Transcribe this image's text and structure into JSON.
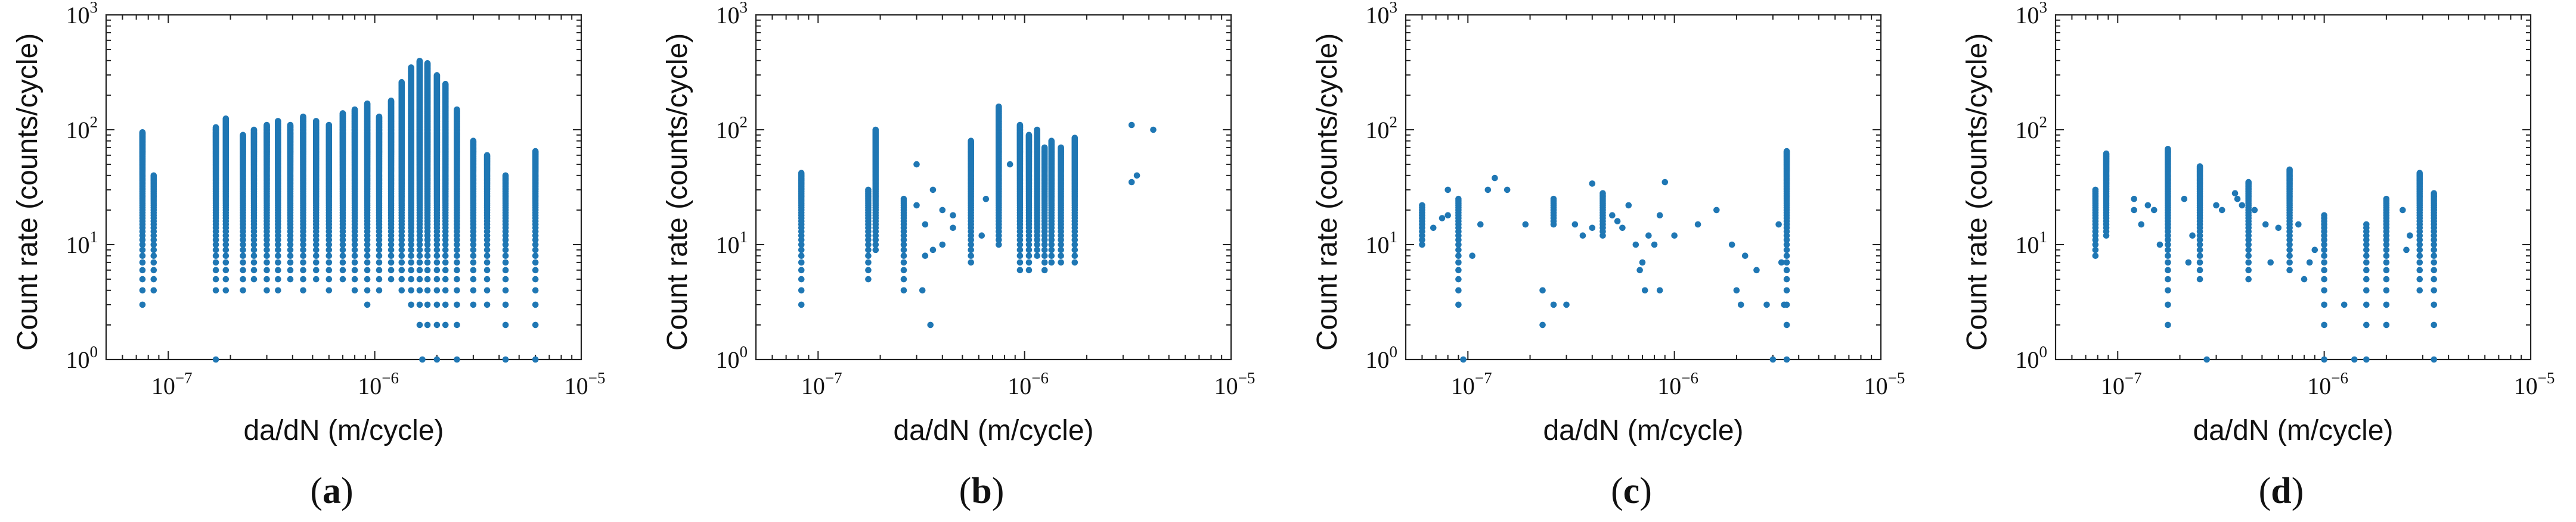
{
  "chart_data": [
    {
      "panel": "a",
      "type": "scatter",
      "xlabel": "da/dN (m/cycle)",
      "ylabel": "Count rate (counts/cycle)",
      "xscale": "log",
      "yscale": "log",
      "xlim": [
        5e-08,
        1e-05
      ],
      "ylim": [
        1,
        1000
      ],
      "xticks": [
        1e-07,
        1e-06,
        1e-05
      ],
      "yticks": [
        1,
        10,
        100,
        1000
      ],
      "color": "#1f77b4",
      "columns": [
        {
          "x": 7.5e-08,
          "ymin": 3,
          "ymax": 95
        },
        {
          "x": 8.5e-08,
          "ymin": 4,
          "ymax": 40
        },
        {
          "x": 1.7e-07,
          "ymin": 4,
          "ymax": 105
        },
        {
          "x": 1.9e-07,
          "ymin": 4,
          "ymax": 125
        },
        {
          "x": 2.3e-07,
          "ymin": 4,
          "ymax": 90
        },
        {
          "x": 2.6e-07,
          "ymin": 5,
          "ymax": 100
        },
        {
          "x": 3e-07,
          "ymin": 4,
          "ymax": 110
        },
        {
          "x": 3.4e-07,
          "ymin": 4,
          "ymax": 120
        },
        {
          "x": 3.9e-07,
          "ymin": 5,
          "ymax": 110
        },
        {
          "x": 4.5e-07,
          "ymin": 4,
          "ymax": 130
        },
        {
          "x": 5.2e-07,
          "ymin": 5,
          "ymax": 120
        },
        {
          "x": 6e-07,
          "ymin": 4,
          "ymax": 110
        },
        {
          "x": 7e-07,
          "ymin": 5,
          "ymax": 140
        },
        {
          "x": 8e-07,
          "ymin": 4,
          "ymax": 150
        },
        {
          "x": 9.2e-07,
          "ymin": 3,
          "ymax": 170
        },
        {
          "x": 1.05e-06,
          "ymin": 4,
          "ymax": 130
        },
        {
          "x": 1.2e-06,
          "ymin": 5,
          "ymax": 180
        },
        {
          "x": 1.35e-06,
          "ymin": 4,
          "ymax": 260
        },
        {
          "x": 1.5e-06,
          "ymin": 3,
          "ymax": 350
        },
        {
          "x": 1.65e-06,
          "ymin": 2,
          "ymax": 400
        },
        {
          "x": 1.8e-06,
          "ymin": 2,
          "ymax": 380
        },
        {
          "x": 2e-06,
          "ymin": 1,
          "ymax": 300
        },
        {
          "x": 2.2e-06,
          "ymin": 2,
          "ymax": 250
        },
        {
          "x": 2.5e-06,
          "ymin": 2,
          "ymax": 150
        },
        {
          "x": 3e-06,
          "ymin": 3,
          "ymax": 80
        },
        {
          "x": 3.5e-06,
          "ymin": 3,
          "ymax": 60
        },
        {
          "x": 4.3e-06,
          "ymin": 2,
          "ymax": 40
        },
        {
          "x": 6e-06,
          "ymin": 2,
          "ymax": 65
        }
      ],
      "points": [
        [
          1.7e-06,
          1
        ],
        [
          2.5e-06,
          1
        ],
        [
          4.3e-06,
          1
        ],
        [
          6e-06,
          1
        ],
        [
          1.7e-07,
          1
        ]
      ]
    },
    {
      "panel": "b",
      "type": "scatter",
      "xlabel": "da/dN (m/cycle)",
      "ylabel": "Count rate (counts/cycle)",
      "xscale": "log",
      "yscale": "log",
      "xlim": [
        5e-08,
        1e-05
      ],
      "ylim": [
        1,
        1000
      ],
      "xticks": [
        1e-07,
        1e-06,
        1e-05
      ],
      "yticks": [
        1,
        10,
        100,
        1000
      ],
      "color": "#1f77b4",
      "columns": [
        {
          "x": 8.3e-08,
          "ymin": 3,
          "ymax": 42
        },
        {
          "x": 1.75e-07,
          "ymin": 5,
          "ymax": 30
        },
        {
          "x": 1.9e-07,
          "ymin": 9,
          "ymax": 100
        },
        {
          "x": 2.6e-07,
          "ymin": 4,
          "ymax": 25
        },
        {
          "x": 5.5e-07,
          "ymin": 7,
          "ymax": 80
        },
        {
          "x": 7.5e-07,
          "ymin": 10,
          "ymax": 160
        },
        {
          "x": 9.5e-07,
          "ymin": 6,
          "ymax": 110
        },
        {
          "x": 1.05e-06,
          "ymin": 6,
          "ymax": 90
        },
        {
          "x": 1.15e-06,
          "ymin": 8,
          "ymax": 100
        },
        {
          "x": 1.25e-06,
          "ymin": 6,
          "ymax": 70
        },
        {
          "x": 1.35e-06,
          "ymin": 7,
          "ymax": 80
        },
        {
          "x": 1.5e-06,
          "ymin": 7,
          "ymax": 70
        },
        {
          "x": 1.75e-06,
          "ymin": 7,
          "ymax": 85
        }
      ],
      "points": [
        [
          3e-07,
          50
        ],
        [
          3e-07,
          22
        ],
        [
          3.3e-07,
          15
        ],
        [
          3.3e-07,
          8
        ],
        [
          3.6e-07,
          9
        ],
        [
          3.6e-07,
          30
        ],
        [
          4e-07,
          20
        ],
        [
          4e-07,
          10
        ],
        [
          4.5e-07,
          14
        ],
        [
          4.5e-07,
          18
        ],
        [
          3.2e-07,
          4
        ],
        [
          3.5e-07,
          2
        ],
        [
          6.2e-07,
          12
        ],
        [
          6.5e-07,
          25
        ],
        [
          8.5e-07,
          50
        ],
        [
          3.3e-06,
          35
        ],
        [
          3.3e-06,
          110
        ],
        [
          3.5e-06,
          40
        ],
        [
          4.2e-06,
          100
        ]
      ]
    },
    {
      "panel": "c",
      "type": "scatter",
      "xlabel": "da/dN (m/cycle)",
      "ylabel": "Count rate (counts/cycle)",
      "xscale": "log",
      "yscale": "log",
      "xlim": [
        5e-08,
        1e-05
      ],
      "ylim": [
        1,
        1000
      ],
      "xticks": [
        1e-07,
        1e-06,
        1e-05
      ],
      "yticks": [
        1,
        10,
        100,
        1000
      ],
      "color": "#1f77b4",
      "columns": [
        {
          "x": 6e-08,
          "ymin": 10,
          "ymax": 22
        },
        {
          "x": 9e-08,
          "ymin": 3,
          "ymax": 25
        },
        {
          "x": 2.6e-07,
          "ymin": 15,
          "ymax": 25
        },
        {
          "x": 4.5e-07,
          "ymin": 12,
          "ymax": 28
        },
        {
          "x": 3.5e-06,
          "ymin": 1,
          "ymax": 65
        }
      ],
      "points": [
        [
          6.8e-08,
          14
        ],
        [
          7.5e-08,
          17
        ],
        [
          8e-08,
          18
        ],
        [
          8e-08,
          30
        ],
        [
          9.5e-08,
          1
        ],
        [
          1.05e-07,
          8
        ],
        [
          1.15e-07,
          15
        ],
        [
          1.25e-07,
          30
        ],
        [
          1.35e-07,
          38
        ],
        [
          1.55e-07,
          30
        ],
        [
          1.9e-07,
          15
        ],
        [
          2.3e-07,
          4
        ],
        [
          2.3e-07,
          2
        ],
        [
          2.6e-07,
          3
        ],
        [
          3e-07,
          3
        ],
        [
          3.3e-07,
          15
        ],
        [
          3.6e-07,
          12
        ],
        [
          4e-07,
          34
        ],
        [
          4e-07,
          14
        ],
        [
          5e-07,
          18
        ],
        [
          5.3e-07,
          16
        ],
        [
          5.6e-07,
          14
        ],
        [
          6e-07,
          22
        ],
        [
          6.5e-07,
          10
        ],
        [
          6.8e-07,
          6
        ],
        [
          7e-07,
          7
        ],
        [
          7.2e-07,
          4
        ],
        [
          7.5e-07,
          12
        ],
        [
          8e-07,
          10
        ],
        [
          8.5e-07,
          18
        ],
        [
          8.5e-07,
          4
        ],
        [
          9e-07,
          35
        ],
        [
          1e-06,
          12
        ],
        [
          1.3e-06,
          15
        ],
        [
          1.6e-06,
          20
        ],
        [
          1.9e-06,
          10
        ],
        [
          2e-06,
          4
        ],
        [
          2.1e-06,
          3
        ],
        [
          2.2e-06,
          8
        ],
        [
          2.5e-06,
          6
        ],
        [
          2.8e-06,
          3
        ],
        [
          3e-06,
          1
        ],
        [
          3.2e-06,
          15
        ],
        [
          3.3e-06,
          7
        ],
        [
          3.4e-06,
          3
        ]
      ]
    },
    {
      "panel": "d",
      "type": "scatter",
      "xlabel": "da/dN (m/cycle)",
      "ylabel": "Count rate (counts/cycle)",
      "xscale": "log",
      "yscale": "log",
      "xlim": [
        5e-08,
        1e-05
      ],
      "ylim": [
        1,
        1000
      ],
      "xticks": [
        1e-07,
        1e-06,
        1e-05
      ],
      "yticks": [
        1,
        10,
        100,
        1000
      ],
      "color": "#1f77b4",
      "columns": [
        {
          "x": 7.8e-08,
          "ymin": 8,
          "ymax": 30
        },
        {
          "x": 8.8e-08,
          "ymin": 12,
          "ymax": 62
        },
        {
          "x": 1.75e-07,
          "ymin": 2,
          "ymax": 68
        },
        {
          "x": 2.5e-07,
          "ymin": 5,
          "ymax": 48
        },
        {
          "x": 4.3e-07,
          "ymin": 5,
          "ymax": 35
        },
        {
          "x": 6.8e-07,
          "ymin": 6,
          "ymax": 45
        },
        {
          "x": 1e-06,
          "ymin": 1,
          "ymax": 18
        },
        {
          "x": 1.6e-06,
          "ymin": 1,
          "ymax": 15
        },
        {
          "x": 2e-06,
          "ymin": 2,
          "ymax": 25
        },
        {
          "x": 2.9e-06,
          "ymin": 4,
          "ymax": 42
        },
        {
          "x": 3.4e-06,
          "ymin": 1,
          "ymax": 28
        }
      ],
      "points": [
        [
          1.2e-07,
          20
        ],
        [
          1.2e-07,
          25
        ],
        [
          1.3e-07,
          15
        ],
        [
          1.4e-07,
          22
        ],
        [
          1.5e-07,
          20
        ],
        [
          1.6e-07,
          10
        ],
        [
          2.1e-07,
          25
        ],
        [
          2.2e-07,
          7
        ],
        [
          2.3e-07,
          12
        ],
        [
          2.7e-07,
          1
        ],
        [
          3e-07,
          22
        ],
        [
          3.2e-07,
          20
        ],
        [
          3.7e-07,
          28
        ],
        [
          3.8e-07,
          25
        ],
        [
          4e-07,
          22
        ],
        [
          4.6e-07,
          20
        ],
        [
          5.2e-07,
          15
        ],
        [
          5.5e-07,
          7
        ],
        [
          6e-07,
          14
        ],
        [
          7.5e-07,
          15
        ],
        [
          8e-07,
          5
        ],
        [
          8.5e-07,
          7
        ],
        [
          9e-07,
          9
        ],
        [
          1.25e-06,
          3
        ],
        [
          1.4e-06,
          1
        ],
        [
          2.4e-06,
          20
        ],
        [
          2.5e-06,
          9
        ],
        [
          2.6e-06,
          12
        ]
      ]
    }
  ],
  "panel_labels": [
    "a",
    "b",
    "c",
    "d"
  ]
}
